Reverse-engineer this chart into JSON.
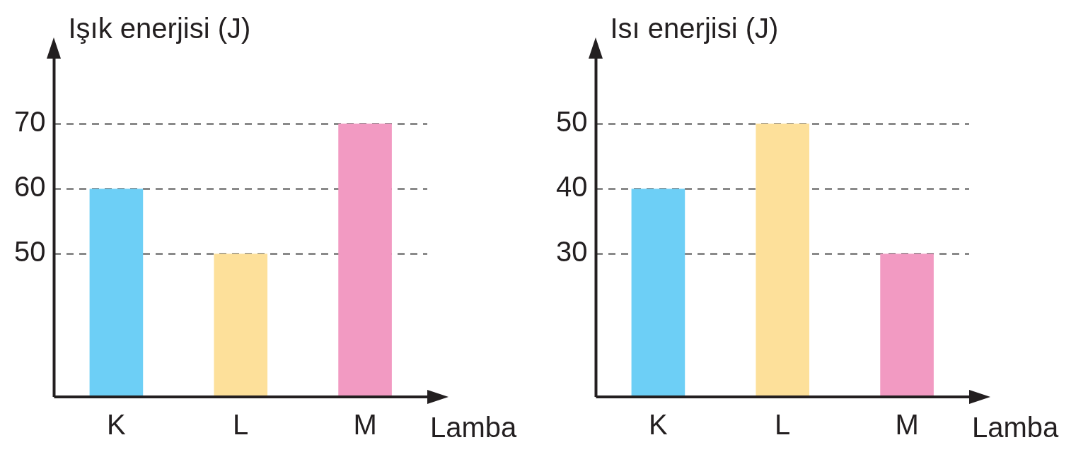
{
  "chart_data": [
    {
      "type": "bar",
      "ylabel": "Işık enerjisi (J)",
      "xlabel": "Lamba",
      "categories": [
        "K",
        "L",
        "M"
      ],
      "values": [
        60,
        50,
        70
      ],
      "colors": [
        "#6dcff6",
        "#fde09a",
        "#f29ac2"
      ],
      "ylim": [
        28,
        80
      ],
      "yticks": [
        50,
        60,
        70
      ],
      "grid": "y",
      "line_style": "dashed"
    },
    {
      "type": "bar",
      "ylabel": "Isı enerjisi (J)",
      "xlabel": "Lamba",
      "categories": [
        "K",
        "L",
        "M"
      ],
      "values": [
        40,
        50,
        30
      ],
      "colors": [
        "#6dcff6",
        "#fde09a",
        "#f29ac2"
      ],
      "ylim": [
        8,
        60
      ],
      "yticks": [
        30,
        40,
        50
      ],
      "grid": "y",
      "line_style": "dashed"
    }
  ]
}
